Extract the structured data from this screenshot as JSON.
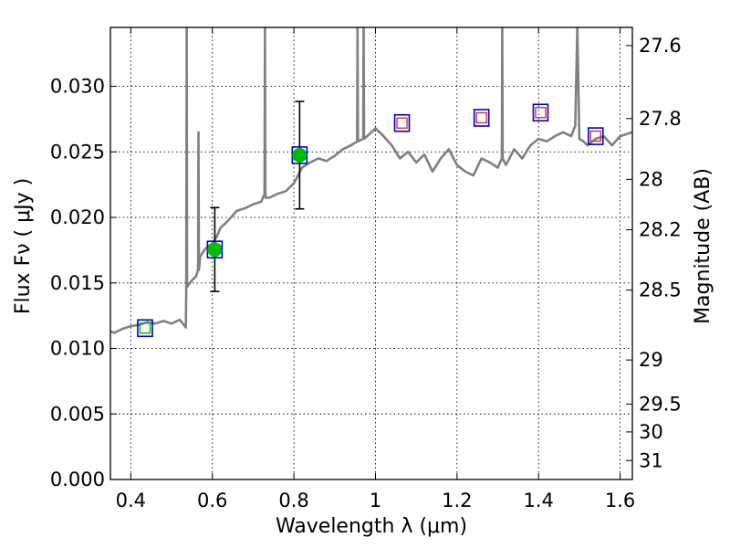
{
  "chart_data": {
    "type": "scatter",
    "xlabel": "Wavelength  λ (μm)",
    "ylabel": "Flux  Fν  ( μJy )",
    "y2label": "Magnitude (AB)",
    "xlim": [
      0.35,
      1.63
    ],
    "ylim": [
      0.0,
      0.0345
    ],
    "xticks": [
      0.4,
      0.6,
      0.8,
      1.0,
      1.2,
      1.4,
      1.6
    ],
    "xtick_labels": [
      "0.4",
      "0.6",
      "0.8",
      "1",
      "1.2",
      "1.4",
      "1.6"
    ],
    "yticks": [
      0.0,
      0.005,
      0.01,
      0.015,
      0.02,
      0.025,
      0.03
    ],
    "ytick_labels": [
      "0.000",
      "0.005",
      "0.010",
      "0.015",
      "0.020",
      "0.025",
      "0.030"
    ],
    "y2ticks": [
      27.6,
      27.8,
      28,
      28.2,
      28.5,
      29,
      29.5,
      30,
      31
    ],
    "y2tick_labels": [
      "27.6",
      "27.8",
      "28",
      "28.2",
      "28.5",
      "29",
      "29.5",
      "30",
      "31"
    ],
    "grid": true,
    "colors": {
      "model": "#808080",
      "box_outline": "#0000cc",
      "detection": "#00bb00",
      "upper_limit": "#cc3344",
      "errorbar": "#000000"
    },
    "model_spectrum": {
      "x": [
        0.35,
        0.36,
        0.38,
        0.4,
        0.42,
        0.44,
        0.46,
        0.48,
        0.5,
        0.52,
        0.535,
        0.536,
        0.537,
        0.538,
        0.545,
        0.55,
        0.56,
        0.565,
        0.566,
        0.567,
        0.57,
        0.58,
        0.59,
        0.6,
        0.61,
        0.62,
        0.64,
        0.66,
        0.68,
        0.7,
        0.72,
        0.728,
        0.729,
        0.73,
        0.731,
        0.74,
        0.76,
        0.78,
        0.8,
        0.81,
        0.82,
        0.84,
        0.86,
        0.88,
        0.9,
        0.92,
        0.94,
        0.955,
        0.956,
        0.957,
        0.97,
        0.971,
        0.972,
        0.98,
        1.0,
        1.02,
        1.04,
        1.06,
        1.08,
        1.1,
        1.12,
        1.14,
        1.16,
        1.18,
        1.2,
        1.22,
        1.24,
        1.26,
        1.28,
        1.3,
        1.31,
        1.311,
        1.312,
        1.32,
        1.34,
        1.36,
        1.38,
        1.4,
        1.42,
        1.44,
        1.46,
        1.48,
        1.49,
        1.495,
        1.5,
        1.51,
        1.52,
        1.54,
        1.56,
        1.58,
        1.6,
        1.63
      ],
      "y": [
        0.0113,
        0.0112,
        0.0115,
        0.0117,
        0.0118,
        0.012,
        0.0119,
        0.0121,
        0.0119,
        0.0122,
        0.0116,
        0.0145,
        0.035,
        0.0147,
        0.015,
        0.0152,
        0.0155,
        0.016,
        0.0265,
        0.016,
        0.017,
        0.0175,
        0.0178,
        0.018,
        0.0185,
        0.0192,
        0.0198,
        0.0205,
        0.0207,
        0.021,
        0.0212,
        0.0218,
        0.035,
        0.022,
        0.0215,
        0.0215,
        0.0218,
        0.022,
        0.0226,
        0.0232,
        0.0238,
        0.0242,
        0.0245,
        0.0243,
        0.0247,
        0.0252,
        0.0255,
        0.0258,
        0.035,
        0.0258,
        0.026,
        0.035,
        0.026,
        0.0262,
        0.0268,
        0.0262,
        0.0255,
        0.0245,
        0.025,
        0.0242,
        0.0248,
        0.0235,
        0.0245,
        0.0252,
        0.024,
        0.0235,
        0.0232,
        0.0245,
        0.0242,
        0.0238,
        0.0245,
        0.035,
        0.0245,
        0.024,
        0.0252,
        0.0245,
        0.0255,
        0.026,
        0.0258,
        0.0262,
        0.0265,
        0.0262,
        0.027,
        0.035,
        0.026,
        0.0258,
        0.0255,
        0.026,
        0.0262,
        0.0255,
        0.0262,
        0.0265
      ]
    },
    "photometry": [
      {
        "x": 0.435,
        "y": 0.01155,
        "kind": "model_box_only"
      },
      {
        "x": 0.606,
        "y": 0.01755,
        "kind": "detection",
        "yerr": 0.0032
      },
      {
        "x": 0.814,
        "y": 0.02475,
        "kind": "detection",
        "yerr": 0.0041
      },
      {
        "x": 1.065,
        "y": 0.0272,
        "kind": "upper_limit"
      },
      {
        "x": 1.26,
        "y": 0.0276,
        "kind": "upper_limit"
      },
      {
        "x": 1.405,
        "y": 0.028,
        "kind": "upper_limit"
      },
      {
        "x": 1.54,
        "y": 0.0262,
        "kind": "upper_limit"
      }
    ]
  }
}
